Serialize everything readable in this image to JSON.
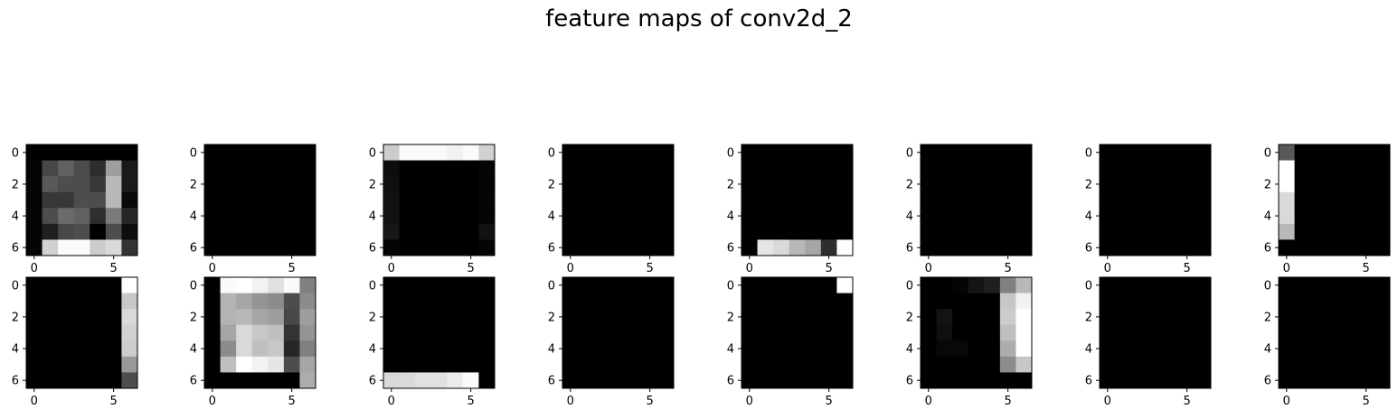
{
  "title": "feature maps of conv2d_2",
  "chart_data": {
    "type": "heatmap",
    "title": "feature maps of conv2d_2",
    "colormap": "gray",
    "rows": 2,
    "cols": 8,
    "size": 7,
    "xticks": [
      0,
      5
    ],
    "yticks": [
      0,
      2,
      4,
      6
    ],
    "xlim": [
      -0.5,
      6.5
    ],
    "ylim": [
      6.5,
      -0.5
    ],
    "maps": [
      [
        [
          0.0,
          0.0,
          0.0,
          0.0,
          0.0,
          0.0,
          0.0
        ],
        [
          0.02,
          0.28,
          0.38,
          0.3,
          0.18,
          0.62,
          0.1
        ],
        [
          0.02,
          0.35,
          0.3,
          0.3,
          0.22,
          0.72,
          0.1
        ],
        [
          0.02,
          0.22,
          0.22,
          0.3,
          0.3,
          0.72,
          0.03
        ],
        [
          0.02,
          0.3,
          0.42,
          0.38,
          0.18,
          0.48,
          0.15
        ],
        [
          0.02,
          0.12,
          0.28,
          0.3,
          0.0,
          0.3,
          0.05
        ],
        [
          0.02,
          0.82,
          0.98,
          0.98,
          0.8,
          0.85,
          0.2
        ]
      ],
      [
        [
          0,
          0,
          0,
          0,
          0,
          0,
          0
        ],
        [
          0,
          0,
          0,
          0,
          0,
          0,
          0
        ],
        [
          0,
          0,
          0,
          0,
          0,
          0,
          0
        ],
        [
          0,
          0,
          0,
          0,
          0,
          0,
          0
        ],
        [
          0,
          0,
          0,
          0,
          0,
          0,
          0
        ],
        [
          0,
          0,
          0,
          0,
          0,
          0,
          0
        ],
        [
          0,
          0,
          0,
          0,
          0,
          0,
          0
        ]
      ],
      [
        [
          0.8,
          0.98,
          0.98,
          0.98,
          0.95,
          0.98,
          0.82
        ],
        [
          0.05,
          0.0,
          0.0,
          0.0,
          0.0,
          0.0,
          0.02
        ],
        [
          0.06,
          0.0,
          0.0,
          0.0,
          0.0,
          0.0,
          0.02
        ],
        [
          0.07,
          0.0,
          0.0,
          0.0,
          0.0,
          0.0,
          0.02
        ],
        [
          0.07,
          0.0,
          0.0,
          0.0,
          0.0,
          0.0,
          0.02
        ],
        [
          0.09,
          0.0,
          0.0,
          0.0,
          0.0,
          0.0,
          0.07
        ],
        [
          0.02,
          0.0,
          0.0,
          0.0,
          0.0,
          0.0,
          0.02
        ]
      ],
      [
        [
          0,
          0,
          0,
          0,
          0,
          0,
          0
        ],
        [
          0,
          0,
          0,
          0,
          0,
          0,
          0
        ],
        [
          0,
          0,
          0,
          0,
          0,
          0,
          0
        ],
        [
          0,
          0,
          0,
          0,
          0,
          0,
          0
        ],
        [
          0,
          0,
          0,
          0,
          0,
          0,
          0
        ],
        [
          0,
          0,
          0,
          0,
          0,
          0,
          0
        ],
        [
          0,
          0,
          0,
          0,
          0,
          0,
          0
        ]
      ],
      [
        [
          0,
          0,
          0,
          0,
          0,
          0,
          0
        ],
        [
          0,
          0,
          0,
          0,
          0,
          0,
          0
        ],
        [
          0,
          0,
          0,
          0,
          0,
          0,
          0
        ],
        [
          0,
          0,
          0,
          0,
          0,
          0,
          0
        ],
        [
          0,
          0,
          0,
          0,
          0,
          0,
          0
        ],
        [
          0,
          0,
          0,
          0,
          0,
          0,
          0
        ],
        [
          0.0,
          0.9,
          0.85,
          0.72,
          0.65,
          0.18,
          1.0
        ]
      ],
      [
        [
          0,
          0,
          0,
          0,
          0,
          0,
          0
        ],
        [
          0,
          0,
          0,
          0,
          0,
          0,
          0
        ],
        [
          0,
          0,
          0,
          0,
          0,
          0,
          0
        ],
        [
          0,
          0,
          0,
          0,
          0,
          0,
          0
        ],
        [
          0,
          0,
          0,
          0,
          0,
          0,
          0
        ],
        [
          0,
          0,
          0,
          0,
          0,
          0,
          0
        ],
        [
          0,
          0,
          0,
          0,
          0,
          0,
          0
        ]
      ],
      [
        [
          0,
          0,
          0,
          0,
          0,
          0,
          0
        ],
        [
          0,
          0,
          0,
          0,
          0,
          0,
          0
        ],
        [
          0,
          0,
          0,
          0,
          0,
          0,
          0
        ],
        [
          0,
          0,
          0,
          0,
          0,
          0,
          0
        ],
        [
          0,
          0,
          0,
          0,
          0,
          0,
          0
        ],
        [
          0,
          0,
          0,
          0,
          0,
          0,
          0
        ],
        [
          0,
          0,
          0,
          0,
          0,
          0,
          0
        ]
      ],
      [
        [
          0.35,
          0,
          0,
          0,
          0,
          0,
          0
        ],
        [
          1.0,
          0,
          0,
          0,
          0,
          0,
          0
        ],
        [
          1.0,
          0,
          0,
          0,
          0,
          0,
          0
        ],
        [
          0.85,
          0,
          0,
          0,
          0,
          0,
          0
        ],
        [
          0.85,
          0,
          0,
          0,
          0,
          0,
          0
        ],
        [
          0.72,
          0,
          0,
          0,
          0,
          0,
          0
        ],
        [
          0.0,
          0,
          0,
          0,
          0,
          0,
          0
        ]
      ],
      [
        [
          0,
          0,
          0,
          0,
          0,
          0,
          1.0
        ],
        [
          0,
          0,
          0,
          0,
          0,
          0,
          0.78
        ],
        [
          0,
          0,
          0,
          0,
          0,
          0,
          0.85
        ],
        [
          0,
          0,
          0,
          0,
          0,
          0,
          0.82
        ],
        [
          0,
          0,
          0,
          0,
          0,
          0,
          0.8
        ],
        [
          0,
          0,
          0,
          0,
          0,
          0,
          0.6
        ],
        [
          0,
          0,
          0,
          0,
          0,
          0,
          0.3
        ]
      ],
      [
        [
          0.0,
          0.98,
          1.0,
          0.95,
          0.88,
          0.98,
          0.5
        ],
        [
          0.0,
          0.7,
          0.65,
          0.58,
          0.55,
          0.3,
          0.55
        ],
        [
          0.0,
          0.7,
          0.72,
          0.65,
          0.62,
          0.28,
          0.62
        ],
        [
          0.0,
          0.65,
          0.85,
          0.78,
          0.75,
          0.2,
          0.58
        ],
        [
          0.0,
          0.55,
          0.85,
          0.75,
          0.78,
          0.15,
          0.5
        ],
        [
          0.0,
          0.75,
          1.0,
          0.95,
          0.9,
          0.3,
          0.65
        ],
        [
          0.0,
          0.0,
          0.0,
          0.0,
          0.0,
          0.0,
          0.68
        ]
      ],
      [
        [
          0,
          0,
          0,
          0,
          0,
          0,
          0
        ],
        [
          0,
          0,
          0,
          0,
          0,
          0,
          0
        ],
        [
          0,
          0,
          0,
          0,
          0,
          0,
          0
        ],
        [
          0,
          0,
          0,
          0,
          0,
          0,
          0
        ],
        [
          0,
          0,
          0,
          0,
          0,
          0,
          0
        ],
        [
          0,
          0,
          0,
          0,
          0,
          0,
          0
        ],
        [
          0.85,
          0.85,
          0.88,
          0.88,
          0.92,
          0.98,
          0.0
        ]
      ],
      [
        [
          0,
          0,
          0,
          0,
          0,
          0,
          0
        ],
        [
          0,
          0,
          0,
          0,
          0,
          0,
          0
        ],
        [
          0,
          0,
          0,
          0,
          0,
          0,
          0
        ],
        [
          0,
          0,
          0,
          0,
          0,
          0,
          0
        ],
        [
          0,
          0,
          0,
          0,
          0,
          0,
          0
        ],
        [
          0,
          0,
          0,
          0,
          0,
          0,
          0
        ],
        [
          0,
          0,
          0,
          0,
          0,
          0,
          0
        ]
      ],
      [
        [
          0,
          0,
          0,
          0,
          0,
          0,
          1.0
        ],
        [
          0,
          0,
          0,
          0,
          0,
          0,
          0
        ],
        [
          0,
          0,
          0,
          0,
          0,
          0,
          0
        ],
        [
          0,
          0,
          0,
          0,
          0,
          0,
          0
        ],
        [
          0,
          0,
          0,
          0,
          0,
          0,
          0
        ],
        [
          0,
          0,
          0,
          0,
          0,
          0,
          0
        ],
        [
          0,
          0,
          0,
          0,
          0,
          0,
          0
        ]
      ],
      [
        [
          0.0,
          0.0,
          0.02,
          0.08,
          0.12,
          0.5,
          0.72
        ],
        [
          0.0,
          0.0,
          0.0,
          0.0,
          0.0,
          0.78,
          0.95
        ],
        [
          0.0,
          0.08,
          0.0,
          0.0,
          0.0,
          0.8,
          1.0
        ],
        [
          0.0,
          0.06,
          0.0,
          0.0,
          0.0,
          0.75,
          1.0
        ],
        [
          0.0,
          0.03,
          0.03,
          0.0,
          0.0,
          0.68,
          1.0
        ],
        [
          0.0,
          0.0,
          0.0,
          0.0,
          0.0,
          0.55,
          0.78
        ],
        [
          0.0,
          0.0,
          0.0,
          0.0,
          0.0,
          0.0,
          0.0
        ]
      ],
      [
        [
          0,
          0,
          0,
          0,
          0,
          0,
          0
        ],
        [
          0,
          0,
          0,
          0,
          0,
          0,
          0
        ],
        [
          0,
          0,
          0,
          0,
          0,
          0,
          0
        ],
        [
          0,
          0,
          0,
          0,
          0,
          0,
          0
        ],
        [
          0,
          0,
          0,
          0,
          0,
          0,
          0
        ],
        [
          0,
          0,
          0,
          0,
          0,
          0,
          0
        ],
        [
          0,
          0,
          0,
          0,
          0,
          0,
          0
        ]
      ],
      [
        [
          0,
          0,
          0,
          0,
          0,
          0,
          0
        ],
        [
          0,
          0,
          0,
          0,
          0,
          0,
          0
        ],
        [
          0,
          0,
          0,
          0,
          0,
          0,
          0
        ],
        [
          0,
          0,
          0,
          0,
          0,
          0,
          0
        ],
        [
          0,
          0,
          0,
          0,
          0,
          0,
          0
        ],
        [
          0,
          0,
          0,
          0,
          0,
          0,
          0
        ],
        [
          0,
          0,
          0,
          0,
          0,
          0,
          0
        ]
      ]
    ]
  }
}
